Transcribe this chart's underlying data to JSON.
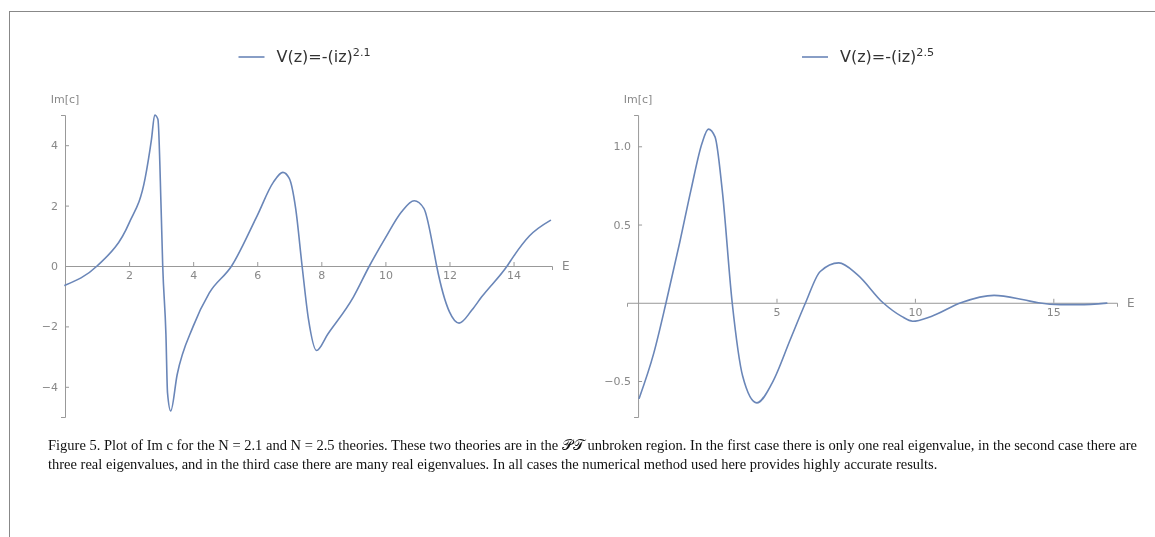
{
  "chart_data": [
    {
      "type": "line",
      "xlabel": "E",
      "ylabel": "Im[c]",
      "xlim": [
        0,
        15.2
      ],
      "ylim": [
        -5,
        5
      ],
      "xticks": [
        2,
        4,
        6,
        8,
        10,
        12,
        14
      ],
      "yticks": [
        -4,
        -2,
        0,
        2,
        4
      ],
      "legend": "top",
      "grid": false,
      "annotations": [
        "Figure 5. Plot of Im c for the N = 2.1 and N = 2.5 theories. These two theories are in the 𝒫𝒯 unbroken region. In the first case there is only one real eigenvalue, in the second case there are three real eigenvalues, and in the third case there are many real eigenvalues. In all cases the numerical method used here provides highly accurate results."
      ],
      "series": [
        {
          "name": "V(z)=-(iz)$^{2.1}$",
          "color": "#6a86b8",
          "x": [
            0,
            1.0,
            2,
            2.5,
            2.7,
            2.8,
            2.9,
            3.0,
            3.05,
            3.15,
            3.2,
            3.3,
            3.5,
            4,
            4.5,
            5.2,
            6,
            6.5,
            6.8,
            7.0,
            7.2,
            7.4,
            7.6,
            7.85,
            8.2,
            9,
            9.5,
            10,
            10.5,
            10.9,
            11.2,
            11.5,
            11.6,
            12,
            12.3,
            12.7,
            13,
            13.8,
            14,
            14.5,
            15.15
          ],
          "values": [
            -0.64,
            0,
            1.42,
            2.9,
            4.2,
            5.0,
            4.86,
            1.9,
            0,
            -2.26,
            -4.2,
            -4.8,
            -3.6,
            -2.0,
            -0.9,
            0,
            1.67,
            2.77,
            3.1,
            2.9,
            1.9,
            0,
            -1.77,
            -2.8,
            -2.26,
            -1.03,
            0,
            0.93,
            1.79,
            2.16,
            1.91,
            0.56,
            0,
            -1.52,
            -1.89,
            -1.46,
            -1.03,
            0,
            0.32,
            1.0,
            1.51
          ]
        }
      ]
    },
    {
      "type": "line",
      "xlabel": "E",
      "ylabel": "Im[c]",
      "xlim": [
        -0.4,
        17.3
      ],
      "ylim": [
        -0.73,
        1.2
      ],
      "xticks": [
        5,
        10,
        15
      ],
      "yticks": [
        -0.5,
        0.5,
        {
          "value": 1.0,
          "label": "1.0"
        }
      ],
      "legend": "top",
      "grid": false,
      "series": [
        {
          "name": "V(z)=-(iz)$^{2.5}$",
          "color": "#6a86b8",
          "x": [
            0.04,
            0.57,
            1.01,
            1.51,
            1.91,
            2.31,
            2.54,
            2.78,
            3.04,
            3.4,
            3.78,
            4.29,
            4.85,
            5.51,
            6.05,
            6.58,
            7.25,
            7.92,
            8.85,
            9.52,
            9.92,
            10.59,
            11.66,
            12.86,
            13.93,
            14.46,
            15.26,
            15.93,
            16.93
          ],
          "values": [
            -0.61,
            -0.32,
            0,
            0.39,
            0.72,
            1.02,
            1.11,
            1.06,
            0.72,
            0,
            -0.47,
            -0.64,
            -0.51,
            -0.23,
            0,
            0.2,
            0.255,
            0.18,
            0,
            -0.087,
            -0.118,
            -0.087,
            0,
            0.047,
            0.019,
            0,
            -0.012,
            -0.012,
            -0.002
          ]
        }
      ]
    }
  ]
}
